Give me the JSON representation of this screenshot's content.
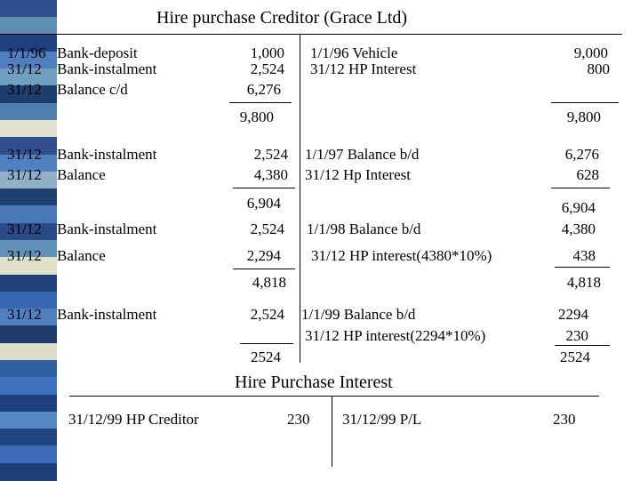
{
  "decor": {
    "strip_colors": [
      "#2f4f8f",
      "#5f8fb0",
      "#1f3f7f",
      "#4f7fc0",
      "#6fa0c0",
      "#1e3f6e",
      "#5080b0",
      "#dfe0d0",
      "#2f4f8f",
      "#4f80bf",
      "#8fb0c8",
      "#1f3f6f",
      "#4878b8",
      "#2a4a8a",
      "#5f90b8",
      "#dfe0c8",
      "#20407a",
      "#3a68b0",
      "#5080c0",
      "#1e3c6e",
      "#dcdcc8",
      "#2f5f9f",
      "#4070c0",
      "#1f3f7f",
      "#5888c8",
      "#22447e",
      "#3a6ab8",
      "#1e3e78"
    ]
  },
  "t_account_1": {
    "title": "Hire purchase Creditor (Grace Ltd)",
    "debit": [
      {
        "date": "1/1/96",
        "desc": "Bank-deposit",
        "amount": "1,000"
      },
      {
        "date": "31/12",
        "desc": "Bank-instalment",
        "amount": "2,524"
      },
      {
        "date": "31/12",
        "desc": "Balance c/d",
        "amount": "6,276"
      },
      {
        "date": "31/12",
        "desc": "Bank-instalment",
        "amount": "2,524"
      },
      {
        "date": "31/12",
        "desc": "Balance",
        "amount": "4,380"
      },
      {
        "date": "31/12",
        "desc": "Bank-instalment",
        "amount": "2,524"
      },
      {
        "date": "31/12",
        "desc": "Balance",
        "amount": "2,294"
      },
      {
        "date": "31/12",
        "desc": "Bank-instalment",
        "amount": "2,524"
      }
    ],
    "debit_totals": [
      "9,800",
      "6,904",
      "4,818",
      "2524"
    ],
    "credit": [
      {
        "desc": "1/1/96 Vehicle",
        "amount": "9,000"
      },
      {
        "desc": "31/12 HP Interest",
        "amount": "800"
      },
      {
        "desc": "1/1/97 Balance b/d",
        "amount": "6,276"
      },
      {
        "desc": "31/12 Hp Interest",
        "amount": "628"
      },
      {
        "desc": "1/1/98 Balance b/d",
        "amount": "4,380"
      },
      {
        "desc": "31/12 HP interest(4380*10%)",
        "amount": "438"
      },
      {
        "desc": "1/1/99 Balance b/d",
        "amount": "2294"
      },
      {
        "desc": "31/12 HP interest(2294*10%)",
        "amount": "230"
      }
    ],
    "credit_totals": [
      "9,800",
      "6,904",
      "4,818",
      "2524"
    ]
  },
  "t_account_2": {
    "title": "Hire Purchase Interest",
    "debit": {
      "desc": "31/12/99 HP Creditor",
      "amount": "230"
    },
    "credit": {
      "desc": "31/12/99 P/L",
      "amount": "230"
    }
  }
}
